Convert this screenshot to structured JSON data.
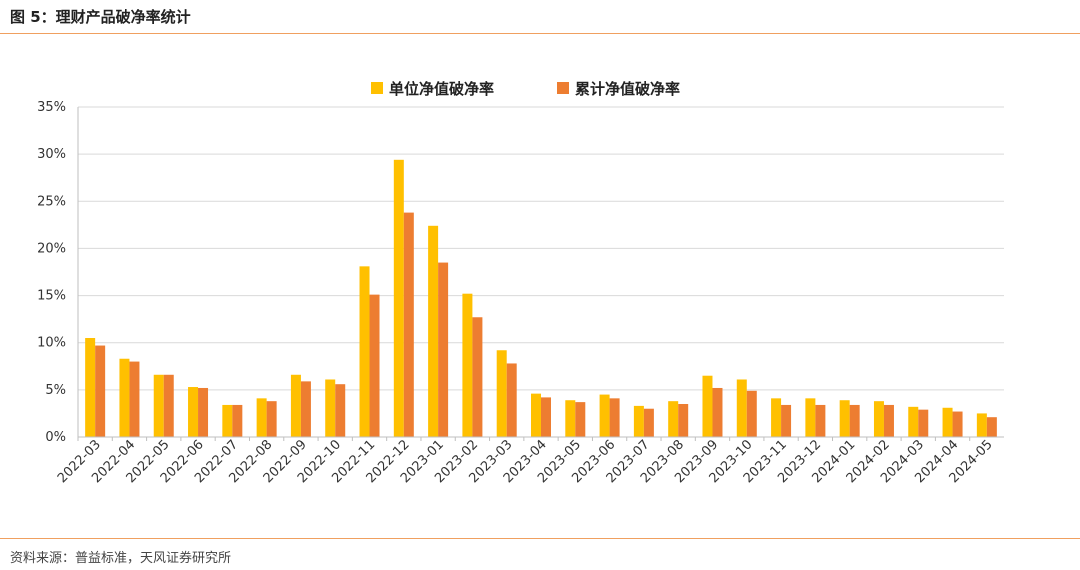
{
  "header": {
    "title": "图 5：理财产品破净率统计"
  },
  "footer": {
    "source": "资料来源：普益标准，天风证券研究所"
  },
  "colors": {
    "series1": "#FFC000",
    "series2": "#ED7D31",
    "rule": "#F0A060",
    "grid": "#D9D9D9"
  },
  "chart_data": {
    "type": "bar",
    "title": "",
    "xlabel": "",
    "ylabel": "",
    "ylim": [
      0,
      35
    ],
    "yticks": [
      "0%",
      "5%",
      "10%",
      "15%",
      "20%",
      "25%",
      "30%",
      "35%"
    ],
    "grid": true,
    "legend_position": "top",
    "categories": [
      "2022-03",
      "2022-04",
      "2022-05",
      "2022-06",
      "2022-07",
      "2022-08",
      "2022-09",
      "2022-10",
      "2022-11",
      "2022-12",
      "2023-01",
      "2023-02",
      "2023-03",
      "2023-04",
      "2023-05",
      "2023-06",
      "2023-07",
      "2023-08",
      "2023-09",
      "2023-10",
      "2023-11",
      "2023-12",
      "2024-01",
      "2024-02",
      "2024-03",
      "2024-04",
      "2024-05"
    ],
    "series": [
      {
        "name": "单位净值破净率",
        "color": "#FFC000",
        "values": [
          10.5,
          8.3,
          6.6,
          5.3,
          3.4,
          4.1,
          6.6,
          6.1,
          18.1,
          29.4,
          22.4,
          15.2,
          9.2,
          4.6,
          3.9,
          4.5,
          3.3,
          3.8,
          6.5,
          6.1,
          4.1,
          4.1,
          3.9,
          3.8,
          3.2,
          3.1,
          2.5
        ]
      },
      {
        "name": "累计净值破净率",
        "color": "#ED7D31",
        "values": [
          9.7,
          8.0,
          6.6,
          5.2,
          3.4,
          3.8,
          5.9,
          5.6,
          15.1,
          23.8,
          18.5,
          12.7,
          7.8,
          4.2,
          3.7,
          4.1,
          3.0,
          3.5,
          5.2,
          4.9,
          3.4,
          3.4,
          3.4,
          3.4,
          2.9,
          2.7,
          2.1
        ]
      }
    ]
  }
}
